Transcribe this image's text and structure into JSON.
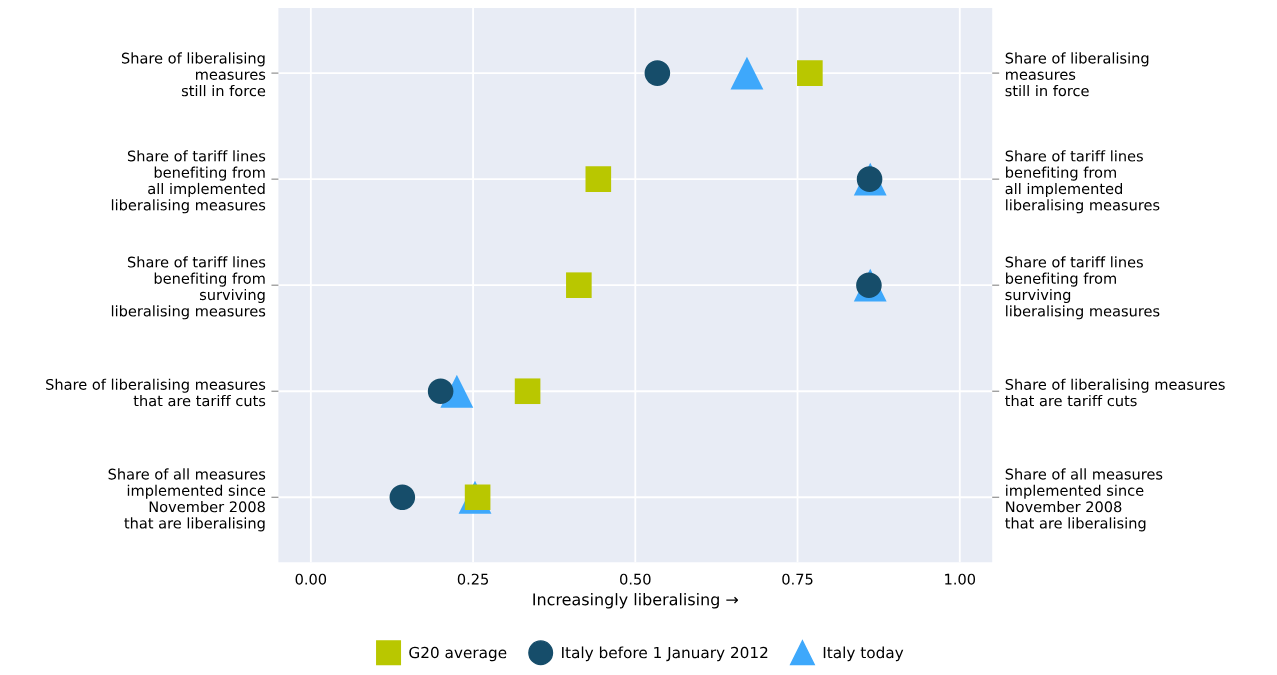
{
  "chart_data": {
    "type": "scatter",
    "orientation": "horizontal",
    "categories": [
      "Share of liberalising\nmeasures\nstill in force",
      "Share of tariff lines\nbenefiting from\nall implemented\nliberalising measures",
      "Share of tariff lines\nbenefiting from\nsurviving\nliberalising measures",
      "Share of liberalising measures\nthat are tariff cuts",
      "Share of all measures\nimplemented since\nNovember 2008\nthat are liberalising"
    ],
    "y2_categories": [
      "Share of liberalising\nmeasures\nstill in force",
      "Share of tariff lines\nbenefiting from\nall implemented\nliberalising measures",
      "Share of tariff lines\nbenefiting from\nsurviving\nliberalising measures",
      "Share of liberalising measures\nthat are tariff cuts",
      "Share of all measures\nimplemented since\nNovember 2008\nthat are liberalising"
    ],
    "xlabel": "Increasingly liberalising →",
    "xlim": [
      -0.05,
      1.05
    ],
    "xticks": [
      {
        "value": 0,
        "label": "0.00"
      },
      {
        "value": 0.25,
        "label": "0.25"
      },
      {
        "value": 0.5,
        "label": "0.50"
      },
      {
        "value": 0.75,
        "label": "0.75"
      },
      {
        "value": 1,
        "label": "1.00"
      }
    ],
    "series": [
      {
        "name": "G20 average",
        "color": "#b9c700",
        "marker": "square",
        "values": [
          0.769,
          0.443,
          0.413,
          0.334,
          0.257
        ]
      },
      {
        "name": "Italy before 1 January 2012",
        "color": "#164d6a",
        "marker": "circle",
        "values": [
          0.534,
          0.861,
          0.86,
          0.2,
          0.141
        ]
      },
      {
        "name": "Italy today",
        "color": "#3ea8fb",
        "marker": "triangle",
        "values": [
          0.672,
          0.862,
          0.862,
          0.225,
          0.253
        ]
      }
    ],
    "grid": true,
    "legend": "bottom"
  }
}
